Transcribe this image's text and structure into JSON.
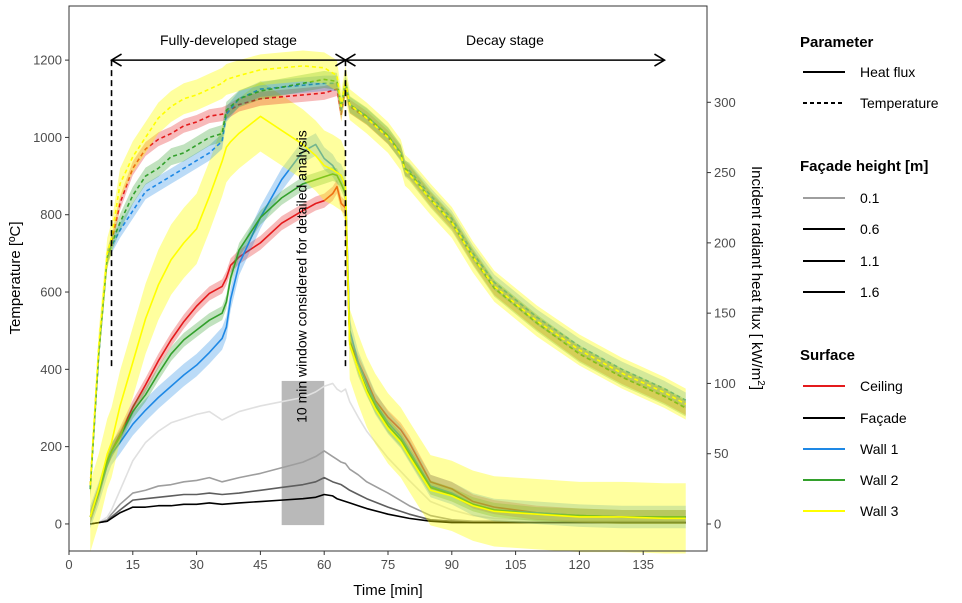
{
  "chart_data": {
    "type": "line",
    "xlabel": "Time [min]",
    "ylabel_left": "Temperature [ºC]",
    "ylabel_right_prefix": "Incident radiant heat flux [ kW/m",
    "ylabel_right_sup": "2",
    "ylabel_right_suffix": "]",
    "xlim": [
      0,
      150
    ],
    "ylim_left": [
      -70,
      1340
    ],
    "ylim_right_kw": [
      -19.2,
      368.5
    ],
    "x_ticks": [
      0,
      15,
      30,
      45,
      60,
      75,
      90,
      105,
      120,
      135
    ],
    "y_ticks_left": [
      0,
      200,
      400,
      600,
      800,
      1000,
      1200
    ],
    "y_ticks_right": [
      0,
      50,
      100,
      150,
      200,
      250,
      300
    ],
    "grid": false,
    "colors": {
      "Ceiling": "#e41a1c",
      "Façade": "#000000",
      "Wall 1": "#1e88e5",
      "Wall 2": "#33a02c",
      "Wall 3": "#ffff00"
    },
    "annotations": {
      "stage1": "Fully-developed stage",
      "stage2": "Decay stage",
      "window": "10 min window considered for detailed analysis",
      "stage1_range": [
        10,
        65
      ],
      "stage2_range": [
        65,
        140
      ],
      "window_range": [
        50,
        60
      ],
      "dashed_markers": [
        10,
        65
      ]
    },
    "series": [
      {
        "param": "Temperature",
        "surface": "Ceiling",
        "x": [
          5,
          7,
          9,
          10,
          12,
          15,
          18,
          21,
          24,
          27,
          30,
          33,
          36,
          37,
          40,
          45,
          50,
          55,
          60,
          63,
          64,
          65,
          66,
          70,
          75,
          78,
          79,
          80,
          85,
          90,
          95,
          100,
          110,
          120,
          130,
          140,
          145
        ],
        "y": [
          100,
          450,
          690,
          730,
          830,
          920,
          970,
          995,
          1010,
          1030,
          1040,
          1055,
          1060,
          1065,
          1085,
          1100,
          1105,
          1110,
          1115,
          1125,
          1060,
          1130,
          1080,
          1050,
          1000,
          960,
          920,
          910,
          840,
          780,
          690,
          610,
          520,
          440,
          380,
          330,
          300
        ],
        "band": 18
      },
      {
        "param": "Temperature",
        "surface": "Wall 1",
        "x": [
          5,
          7,
          9,
          10,
          12,
          15,
          18,
          21,
          24,
          27,
          30,
          33,
          36,
          37,
          40,
          45,
          50,
          55,
          60,
          63,
          64,
          65,
          66,
          70,
          75,
          78,
          79,
          80,
          85,
          90,
          95,
          100,
          110,
          120,
          130,
          140,
          145
        ],
        "y": [
          95,
          440,
          690,
          720,
          760,
          810,
          860,
          880,
          900,
          920,
          940,
          960,
          990,
          1060,
          1100,
          1125,
          1130,
          1135,
          1140,
          1140,
          1070,
          1140,
          1085,
          1055,
          1005,
          960,
          920,
          915,
          850,
          790,
          700,
          625,
          535,
          460,
          400,
          350,
          320
        ],
        "band": 20
      },
      {
        "param": "Temperature",
        "surface": "Wall 2",
        "x": [
          5,
          7,
          9,
          10,
          12,
          15,
          18,
          21,
          24,
          27,
          30,
          33,
          36,
          37,
          40,
          45,
          50,
          55,
          60,
          63,
          64,
          65,
          66,
          70,
          75,
          78,
          79,
          80,
          85,
          90,
          95,
          100,
          110,
          120,
          130,
          140,
          145
        ],
        "y": [
          90,
          440,
          690,
          725,
          780,
          850,
          900,
          920,
          950,
          960,
          980,
          1000,
          1010,
          1070,
          1100,
          1120,
          1130,
          1140,
          1150,
          1145,
          1080,
          1145,
          1085,
          1055,
          1005,
          960,
          920,
          910,
          840,
          780,
          690,
          610,
          520,
          440,
          380,
          330,
          300
        ],
        "band": 22
      },
      {
        "param": "Temperature",
        "surface": "Wall 3",
        "x": [
          5,
          7,
          9,
          10,
          12,
          15,
          18,
          21,
          24,
          27,
          30,
          33,
          36,
          37,
          40,
          45,
          50,
          55,
          60,
          63,
          64,
          65,
          66,
          70,
          75,
          78,
          79,
          80,
          85,
          90,
          95,
          100,
          110,
          120,
          130,
          140,
          145
        ],
        "y": [
          100,
          460,
          700,
          740,
          880,
          950,
          1000,
          1050,
          1080,
          1100,
          1110,
          1125,
          1140,
          1150,
          1160,
          1175,
          1180,
          1185,
          1180,
          1160,
          1080,
          1145,
          1085,
          1050,
          1000,
          955,
          915,
          905,
          840,
          780,
          690,
          615,
          525,
          450,
          390,
          340,
          310
        ],
        "band": 40
      },
      {
        "param": "Heat flux",
        "surface": "Ceiling",
        "height": "1.6",
        "x": [
          5,
          7,
          9,
          10,
          12,
          15,
          18,
          21,
          24,
          27,
          30,
          33,
          36,
          37,
          38,
          40,
          45,
          50,
          55,
          58,
          60,
          62,
          63,
          64,
          65,
          66,
          68,
          70,
          72,
          75,
          78,
          80,
          85,
          90,
          95,
          100,
          110,
          120,
          130,
          140,
          145
        ],
        "y": [
          5,
          23,
          45,
          52,
          64,
          83,
          99,
          116,
          131,
          144,
          155,
          164,
          169,
          175,
          184,
          190,
          200,
          214,
          223,
          228,
          230,
          235,
          240,
          228,
          225,
          130,
          115,
          102,
          88,
          76,
          67,
          58,
          30,
          25,
          16,
          12,
          8,
          6,
          5,
          5,
          5
        ],
        "band": 5
      },
      {
        "param": "Heat flux",
        "surface": "Wall 1",
        "height": "1.6",
        "x": [
          5,
          7,
          9,
          10,
          12,
          15,
          18,
          21,
          24,
          27,
          30,
          33,
          36,
          37,
          38,
          40,
          45,
          50,
          55,
          58,
          60,
          62,
          63,
          64,
          65,
          66,
          68,
          70,
          72,
          75,
          78,
          80,
          85,
          90,
          95,
          100,
          110,
          120,
          130,
          140,
          145
        ],
        "y": [
          5,
          22,
          42,
          50,
          58,
          71,
          81,
          90,
          98,
          106,
          113,
          122,
          132,
          140,
          160,
          185,
          218,
          245,
          265,
          270,
          260,
          255,
          250,
          248,
          240,
          138,
          115,
          100,
          86,
          72,
          62,
          52,
          27,
          22,
          14,
          10,
          8,
          6,
          5,
          5,
          5
        ],
        "band": 8
      },
      {
        "param": "Heat flux",
        "surface": "Wall 2",
        "height": "1.6",
        "x": [
          5,
          7,
          9,
          10,
          12,
          15,
          18,
          21,
          24,
          27,
          30,
          33,
          36,
          37,
          38,
          40,
          45,
          50,
          55,
          58,
          60,
          62,
          63,
          64,
          65,
          66,
          68,
          70,
          72,
          75,
          78,
          80,
          85,
          90,
          95,
          100,
          110,
          120,
          130,
          140,
          145
        ],
        "y": [
          5,
          23,
          45,
          52,
          62,
          80,
          92,
          107,
          121,
          131,
          138,
          145,
          150,
          158,
          175,
          195,
          218,
          232,
          242,
          245,
          247,
          249,
          248,
          242,
          235,
          130,
          110,
          96,
          84,
          70,
          60,
          50,
          26,
          21,
          14,
          10,
          7,
          6,
          5,
          5,
          5
        ],
        "band": 5
      },
      {
        "param": "Heat flux",
        "surface": "Wall 3",
        "height": "1.6",
        "x": [
          5,
          7,
          9,
          10,
          12,
          15,
          18,
          21,
          24,
          27,
          30,
          33,
          36,
          37,
          38,
          40,
          45,
          50,
          55,
          58,
          60,
          62,
          63,
          64,
          65,
          66,
          68,
          70,
          72,
          75,
          78,
          80,
          85,
          90,
          95,
          100,
          110,
          120,
          130,
          140,
          145
        ],
        "y": [
          5,
          25,
          50,
          58,
          84,
          115,
          146,
          170,
          188,
          200,
          210,
          233,
          258,
          268,
          272,
          278,
          290,
          280,
          270,
          262,
          255,
          252,
          250,
          248,
          240,
          128,
          110,
          94,
          82,
          68,
          58,
          48,
          24,
          20,
          13,
          9,
          7,
          5,
          5,
          4,
          4
        ],
        "band": 25
      },
      {
        "param": "Heat flux",
        "surface": "Façade",
        "height": "0.1",
        "x": [
          5,
          7,
          9,
          10,
          12,
          15,
          18,
          21,
          24,
          27,
          30,
          33,
          36,
          40,
          45,
          50,
          55,
          58,
          60,
          62,
          63,
          64,
          65,
          66,
          68,
          70,
          75,
          80,
          85,
          90,
          95,
          100,
          110,
          120,
          130,
          140,
          145
        ],
        "y": [
          0,
          1,
          5,
          10,
          24,
          45,
          58,
          66,
          72,
          75,
          78,
          80,
          74,
          80,
          84,
          87,
          90,
          94,
          98,
          100,
          96,
          94,
          96,
          87,
          76,
          66,
          47,
          31,
          16,
          10,
          6,
          4,
          3,
          2,
          2,
          2,
          2
        ]
      },
      {
        "param": "Heat flux",
        "surface": "Façade",
        "height": "0.6",
        "x": [
          5,
          7,
          9,
          10,
          12,
          15,
          18,
          21,
          24,
          27,
          30,
          33,
          36,
          40,
          45,
          50,
          55,
          58,
          60,
          62,
          63,
          64,
          65,
          66,
          68,
          70,
          75,
          80,
          85,
          90,
          95,
          100,
          110,
          120,
          130,
          140,
          145
        ],
        "y": [
          0,
          1,
          3,
          7,
          14,
          22,
          24,
          27,
          28,
          30,
          31,
          33,
          30,
          33,
          36,
          40,
          44,
          48,
          52,
          48,
          46,
          44,
          43,
          39,
          35,
          30,
          22,
          13,
          6,
          3,
          2,
          2,
          1,
          1,
          1,
          1,
          1
        ]
      },
      {
        "param": "Heat flux",
        "surface": "Façade",
        "height": "1.1",
        "x": [
          5,
          7,
          9,
          10,
          12,
          15,
          18,
          21,
          24,
          27,
          30,
          33,
          36,
          40,
          45,
          50,
          55,
          58,
          60,
          62,
          63,
          64,
          65,
          66,
          68,
          70,
          75,
          80,
          85,
          90,
          95,
          100,
          110,
          120,
          130,
          140,
          145
        ],
        "y": [
          0,
          1,
          2,
          5,
          10,
          17,
          18,
          19,
          20,
          21,
          21,
          22,
          21,
          22,
          24,
          26,
          28,
          30,
          33,
          30,
          29,
          28,
          26,
          24,
          21,
          18,
          12,
          7,
          3,
          2,
          1,
          1,
          1,
          1,
          1,
          1,
          1
        ]
      },
      {
        "param": "Heat flux",
        "surface": "Façade",
        "height": "1.6",
        "x": [
          5,
          7,
          9,
          10,
          12,
          15,
          18,
          21,
          24,
          27,
          30,
          33,
          36,
          40,
          45,
          50,
          55,
          58,
          60,
          62,
          63,
          64,
          65,
          66,
          68,
          70,
          75,
          80,
          85,
          90,
          95,
          100,
          110,
          120,
          130,
          140,
          145
        ],
        "y": [
          0,
          1,
          2,
          4,
          8,
          12,
          12,
          13,
          13,
          14,
          14,
          15,
          14,
          15,
          16,
          17,
          18,
          19,
          21,
          20,
          18,
          17,
          16,
          15,
          13,
          11,
          7,
          4,
          2,
          1,
          1,
          1,
          1,
          1,
          1,
          1,
          1
        ]
      }
    ]
  },
  "legend": {
    "parameter": {
      "title": "Parameter",
      "items": [
        "Heat flux",
        "Temperature"
      ]
    },
    "height": {
      "title": "Façade height [m]",
      "items": [
        "0.1",
        "0.6",
        "1.1",
        "1.6"
      ]
    },
    "surface": {
      "title": "Surface",
      "items": [
        "Ceiling",
        "Façade",
        "Wall 1",
        "Wall 2",
        "Wall 3"
      ]
    }
  }
}
